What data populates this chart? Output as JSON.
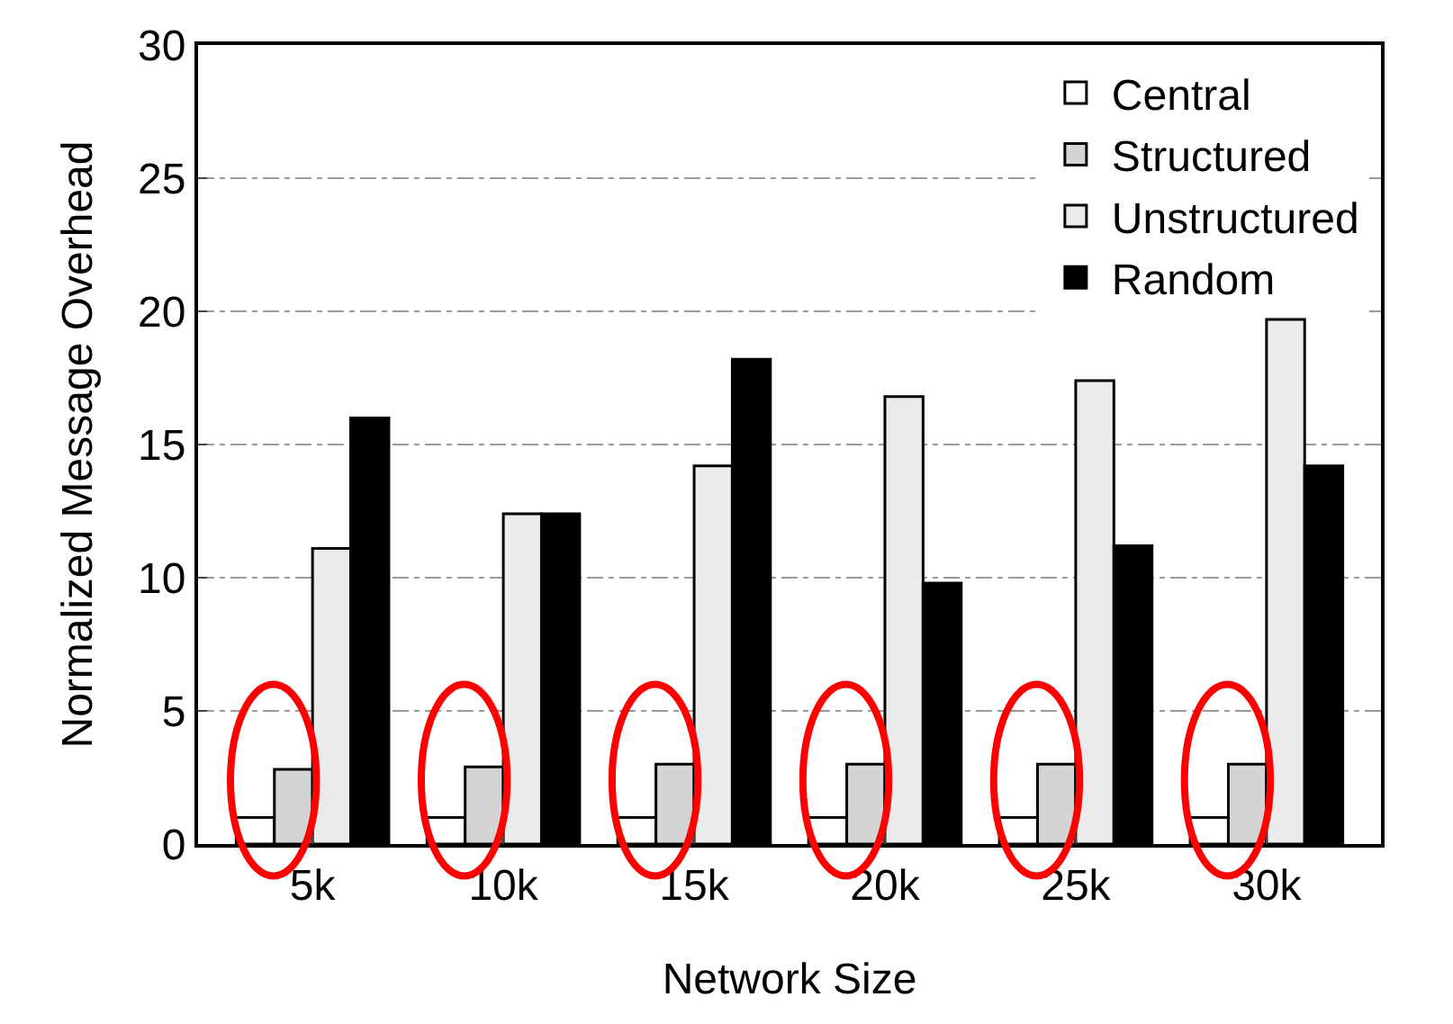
{
  "chart_data": {
    "type": "bar",
    "xlabel": "Network Size",
    "ylabel": "Normalized Message Overhead",
    "categories": [
      "5k",
      "10k",
      "15k",
      "20k",
      "25k",
      "30k"
    ],
    "series": [
      {
        "name": "Central",
        "color": "#ffffff",
        "values": [
          1,
          1,
          1,
          1,
          1,
          1
        ]
      },
      {
        "name": "Structured",
        "color": "#d4d4d4",
        "values": [
          2.8,
          2.9,
          3.0,
          3.0,
          3.0,
          3.0
        ]
      },
      {
        "name": "Unstructured",
        "color": "#ebebeb",
        "values": [
          11.1,
          12.4,
          14.2,
          16.8,
          17.4,
          19.7
        ]
      },
      {
        "name": "Random",
        "color": "#000000",
        "values": [
          16.0,
          12.4,
          18.2,
          9.8,
          11.2,
          14.2
        ]
      }
    ],
    "ylim": [
      0,
      30
    ],
    "yticks": [
      0,
      5,
      10,
      15,
      20,
      25,
      30
    ],
    "grid": "y",
    "legend": "top right"
  }
}
